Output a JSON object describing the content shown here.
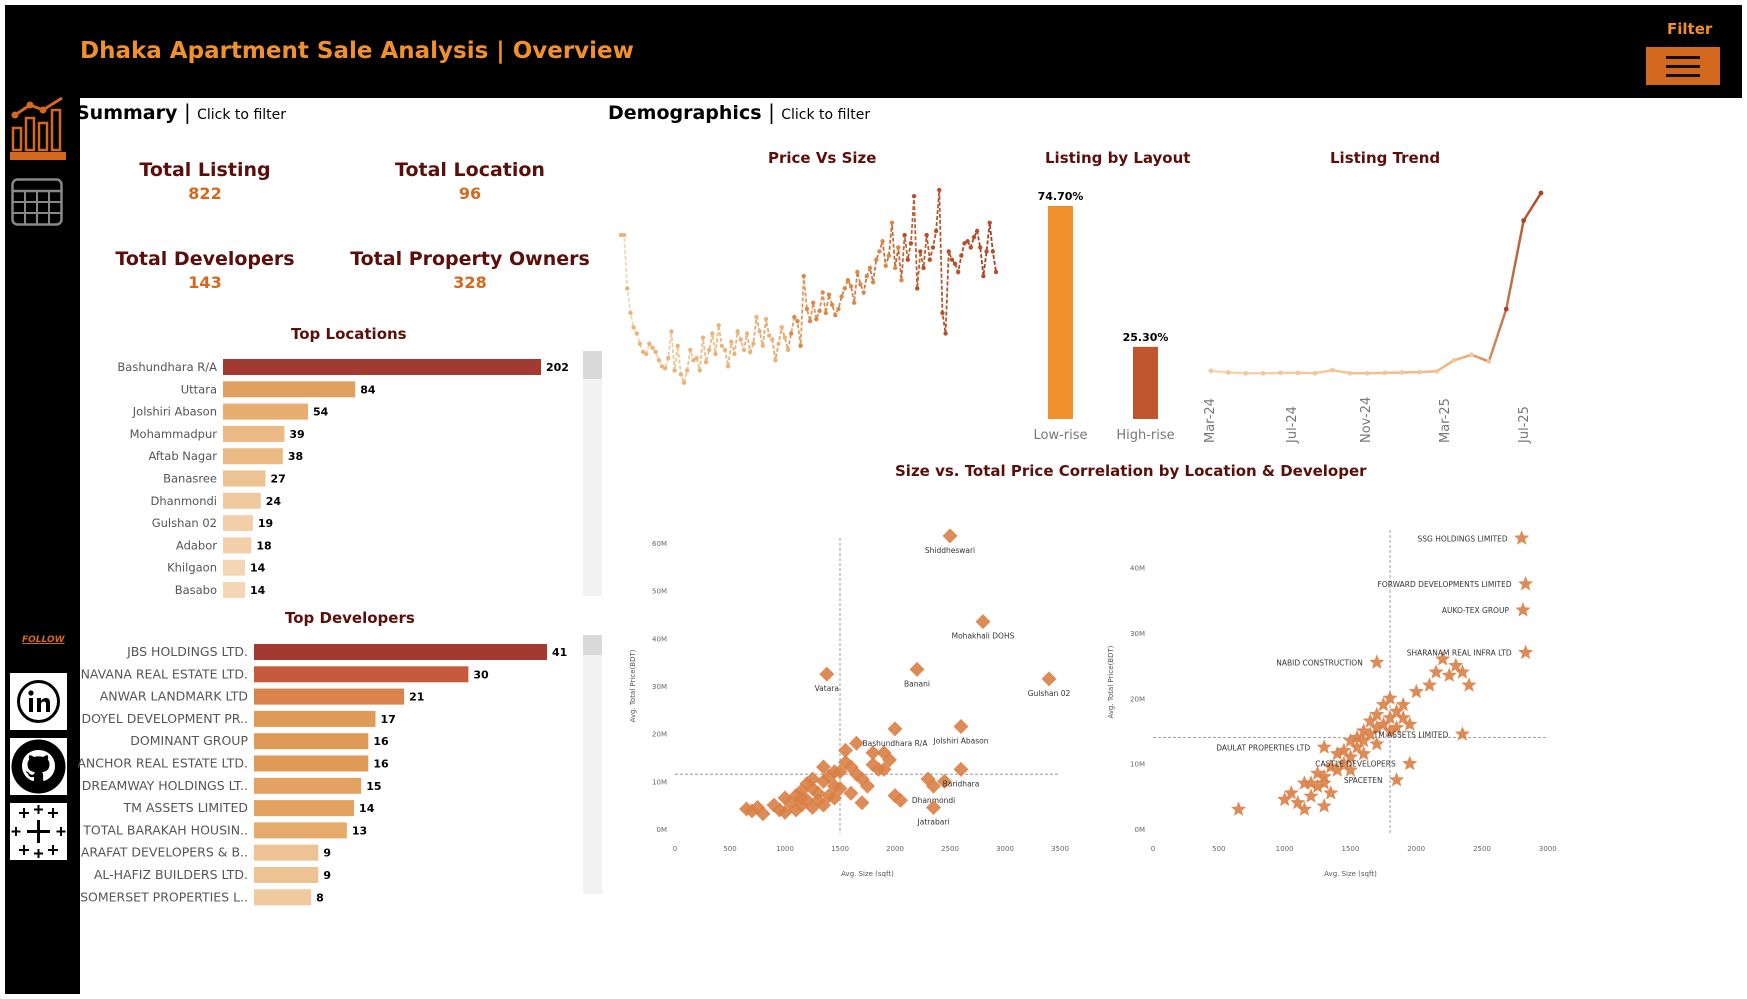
{
  "header": {
    "title": "Dhaka Apartment Sale Analysis | Overview",
    "filter_label": "Filter",
    "colors": {
      "background": "#000000",
      "accent": "#F0912C",
      "button": "#D2691E"
    }
  },
  "sidebar": {
    "icons": [
      "bar-line-chart-icon",
      "table-grid-icon",
      "linkedin-icon",
      "github-icon",
      "tableau-icon"
    ],
    "follow_label": "FOLLOW"
  },
  "summary": {
    "heading": "Summary",
    "click_hint": "Click to filter",
    "kpis": [
      {
        "label": "Total Listing",
        "value": "822"
      },
      {
        "label": "Total Location",
        "value": "96"
      },
      {
        "label": "Total Developers",
        "value": "143"
      },
      {
        "label": "Total Property Owners",
        "value": "328"
      }
    ]
  },
  "demographics": {
    "heading": "Demographics",
    "click_hint": "Click to filter"
  },
  "chart_data": [
    {
      "id": "top-locations",
      "type": "bar",
      "orientation": "horizontal",
      "title": "Top Locations",
      "categories": [
        "Bashundhara R/A",
        "Uttara",
        "Jolshiri Abason",
        "Mohammadpur",
        "Aftab Nagar",
        "Banasree",
        "Dhanmondi",
        "Gulshan 02",
        "Adabor",
        "Khilgaon",
        "Basabo"
      ],
      "values": [
        202,
        84,
        54,
        39,
        38,
        27,
        24,
        19,
        18,
        14,
        14
      ],
      "colors": [
        "#A33A32",
        "#DFA060",
        "#E7AE70",
        "#EBBA84",
        "#EBBA84",
        "#EEC394",
        "#F0C99E",
        "#F2CFA8",
        "#F2CFA8",
        "#F4D6B4",
        "#F4D6B4"
      ]
    },
    {
      "id": "top-developers",
      "type": "bar",
      "orientation": "horizontal",
      "title": "Top Developers",
      "categories": [
        "JBS HOLDINGS LTD.",
        "NAVANA REAL ESTATE LTD.",
        "ANWAR LANDMARK LTD",
        "DOYEL DEVELOPMENT PR..",
        "DOMINANT GROUP",
        "ANCHOR REAL ESTATE LTD.",
        "DREAMWAY HOLDINGS LT..",
        "TM ASSETS LIMITED",
        "TOTAL BARAKAH HOUSIN..",
        "ARAFAT DEVELOPERS & B..",
        "AL-HAFIZ BUILDERS LTD.",
        "SOMERSET PROPERTIES L.."
      ],
      "values": [
        41,
        30,
        21,
        17,
        16,
        16,
        15,
        14,
        13,
        9,
        9,
        8
      ],
      "colors": [
        "#A33A32",
        "#C65A3E",
        "#D9844D",
        "#E09A58",
        "#E09A58",
        "#E09A58",
        "#E3A262",
        "#E3A262",
        "#E6AA6C",
        "#EEC394",
        "#EEC394",
        "#F0C99E"
      ]
    },
    {
      "id": "price-vs-size",
      "type": "line",
      "title": "Price Vs Size",
      "x": [
        0,
        1,
        2,
        3,
        4,
        5,
        6,
        7,
        8,
        9,
        10,
        11,
        12,
        13,
        14,
        15,
        16,
        17,
        18,
        19,
        20,
        21,
        22,
        23,
        24,
        25,
        26,
        27,
        28,
        29,
        30,
        31,
        32,
        33,
        34,
        35,
        36,
        37,
        38,
        39,
        40,
        41,
        42,
        43,
        44,
        45,
        46,
        47,
        48,
        49,
        50,
        51,
        52,
        53,
        54,
        55,
        56,
        57,
        58,
        59,
        60,
        61,
        62,
        63,
        64,
        65,
        66,
        67,
        68,
        69,
        70,
        71,
        72,
        73,
        74,
        75,
        76,
        77,
        78,
        79,
        80,
        81,
        82,
        83,
        84,
        85,
        86,
        87,
        88,
        89,
        90,
        91,
        92,
        93,
        94,
        95,
        96,
        97,
        98,
        99,
        100,
        101,
        102,
        103,
        104,
        105,
        106,
        107,
        108,
        109,
        110,
        111,
        112,
        113,
        114,
        115,
        116,
        117,
        118,
        119
      ],
      "values": [
        0.78,
        0.78,
        0.52,
        0.4,
        0.33,
        0.3,
        0.25,
        0.21,
        0.2,
        0.25,
        0.23,
        0.21,
        0.17,
        0.14,
        0.13,
        0.18,
        0.31,
        0.12,
        0.24,
        0.1,
        0.06,
        0.12,
        0.22,
        0.17,
        0.18,
        0.12,
        0.28,
        0.16,
        0.22,
        0.3,
        0.2,
        0.34,
        0.24,
        0.22,
        0.14,
        0.26,
        0.2,
        0.31,
        0.27,
        0.22,
        0.3,
        0.21,
        0.25,
        0.38,
        0.31,
        0.24,
        0.37,
        0.29,
        0.27,
        0.17,
        0.25,
        0.33,
        0.28,
        0.22,
        0.3,
        0.38,
        0.36,
        0.24,
        0.58,
        0.42,
        0.36,
        0.45,
        0.37,
        0.41,
        0.5,
        0.4,
        0.49,
        0.44,
        0.39,
        0.42,
        0.48,
        0.52,
        0.56,
        0.53,
        0.45,
        0.6,
        0.54,
        0.5,
        0.58,
        0.62,
        0.55,
        0.66,
        0.7,
        0.75,
        0.63,
        0.68,
        0.84,
        0.62,
        0.72,
        0.56,
        0.78,
        0.66,
        0.74,
        0.97,
        0.52,
        0.7,
        0.62,
        0.78,
        0.66,
        0.72,
        0.8,
        1.0,
        0.4,
        0.3,
        0.7,
        0.66,
        0.64,
        0.6,
        0.68,
        0.74,
        0.75,
        0.72,
        0.77,
        0.8,
        0.72,
        0.58,
        0.7,
        0.84,
        0.7,
        0.6
      ],
      "note_style": "dashed gradient orange"
    },
    {
      "id": "listing-by-layout",
      "type": "bar",
      "title": "Listing by Layout",
      "categories": [
        "Low-rise",
        "High-rise"
      ],
      "values": [
        74.7,
        25.3
      ],
      "value_labels": [
        "74.70%",
        "25.30%"
      ],
      "colors": [
        "#F0912C",
        "#BF5630"
      ]
    },
    {
      "id": "listing-trend",
      "type": "line",
      "title": "Listing Trend",
      "x_tick_labels": [
        "Mar-24",
        "Jul-24",
        "Nov-24",
        "Mar-25",
        "Jul-25"
      ],
      "values": [
        18,
        14,
        12,
        12,
        13,
        13,
        12,
        20,
        12,
        12,
        13,
        14,
        15,
        17,
        45,
        59,
        42,
        175,
        400,
        470
      ]
    },
    {
      "id": "location-scatter",
      "type": "scatter",
      "title": "Size vs. Total Price Correlation by Location & Developer",
      "xlabel": "Avg. Size (sqft)",
      "ylabel": "Avg. Total Price(BDT)",
      "x_ticks": [
        "0",
        "500",
        "1000",
        "1500",
        "2000",
        "2500",
        "3000",
        "3500"
      ],
      "y_ticks": [
        "0M",
        "10M",
        "20M",
        "30M",
        "40M",
        "50M",
        "60M"
      ],
      "xlim": [
        0,
        3500
      ],
      "ylim": [
        0,
        60
      ],
      "ref_x": 1500,
      "ref_y": 11.5,
      "labeled_points": [
        {
          "label": "Shiddheswari",
          "x": 2500,
          "y": 61.5
        },
        {
          "label": "Mohakhali DOHS",
          "x": 2800,
          "y": 43.5
        },
        {
          "label": "Vatara",
          "x": 1380,
          "y": 32.5
        },
        {
          "label": "Banani",
          "x": 2200,
          "y": 33.5
        },
        {
          "label": "Gulshan 02",
          "x": 3400,
          "y": 31.5
        },
        {
          "label": "Bashundhara R/A",
          "x": 2000,
          "y": 21.0
        },
        {
          "label": "Jolshiri Abason",
          "x": 2600,
          "y": 21.5
        },
        {
          "label": "Baridhara",
          "x": 2600,
          "y": 12.5
        },
        {
          "label": "Dhanmondi",
          "x": 2350,
          "y": 9.0
        },
        {
          "label": "Jatrabari",
          "x": 2350,
          "y": 4.5
        }
      ],
      "points": [
        [
          650,
          4.2
        ],
        [
          700,
          3.8
        ],
        [
          750,
          4.5
        ],
        [
          800,
          3.2
        ],
        [
          900,
          5.0
        ],
        [
          950,
          4.0
        ],
        [
          1000,
          6.5
        ],
        [
          1050,
          5.5
        ],
        [
          1100,
          7.0
        ],
        [
          1150,
          8.0
        ],
        [
          1200,
          9.5
        ],
        [
          1250,
          8.5
        ],
        [
          1300,
          7.5
        ],
        [
          1350,
          10.0
        ],
        [
          1400,
          11.0
        ],
        [
          1450,
          9.0
        ],
        [
          1500,
          12.0
        ],
        [
          1550,
          14.0
        ],
        [
          1600,
          13.0
        ],
        [
          1650,
          11.5
        ],
        [
          1700,
          10.5
        ],
        [
          1750,
          9.0
        ],
        [
          1800,
          13.5
        ],
        [
          1850,
          12.5
        ],
        [
          1900,
          16.0
        ],
        [
          1950,
          14.5
        ],
        [
          2000,
          7.0
        ],
        [
          1100,
          4.0
        ],
        [
          1150,
          5.0
        ],
        [
          1200,
          6.0
        ],
        [
          1250,
          4.5
        ],
        [
          1300,
          6.0
        ],
        [
          1350,
          5.0
        ],
        [
          1400,
          7.0
        ],
        [
          1450,
          6.5
        ],
        [
          1500,
          8.5
        ],
        [
          1600,
          7.5
        ],
        [
          1700,
          5.5
        ],
        [
          2300,
          10.5
        ],
        [
          2450,
          10.0
        ],
        [
          1550,
          16.5
        ],
        [
          1650,
          18.0
        ],
        [
          1800,
          16.0
        ],
        [
          1900,
          12.5
        ],
        [
          1000,
          3.5
        ],
        [
          1150,
          6.5
        ],
        [
          1250,
          10.5
        ],
        [
          1350,
          13.0
        ],
        [
          1450,
          12.0
        ],
        [
          2050,
          6.0
        ]
      ]
    },
    {
      "id": "developer-scatter",
      "type": "scatter",
      "xlabel": "Avg. Size (sqft)",
      "ylabel": "Avg. Total Price(BDT)",
      "x_ticks": [
        "0",
        "500",
        "1000",
        "1500",
        "2000",
        "2500",
        "3000"
      ],
      "y_ticks": [
        "0M",
        "10M",
        "20M",
        "30M",
        "40M"
      ],
      "xlim": [
        0,
        3000
      ],
      "ylim": [
        0,
        45
      ],
      "ref_x": 1800,
      "ref_y": 14.0,
      "labeled_points": [
        {
          "label": "SSG HOLDINGS LIMITED",
          "x": 2800,
          "y": 44.5
        },
        {
          "label": "FORWARD DEVELOPMENTS LIMITED",
          "x": 2830,
          "y": 37.5
        },
        {
          "label": "AUKO-TEX GROUP",
          "x": 2810,
          "y": 33.5
        },
        {
          "label": "SHARANAM REAL INFRA LTD",
          "x": 2830,
          "y": 27.0
        },
        {
          "label": "NABID CONSTRUCTION",
          "x": 1700,
          "y": 25.5
        },
        {
          "label": "DAULAT PROPERTIES LTD",
          "x": 1300,
          "y": 12.5
        },
        {
          "label": "TM ASSETS LIMITED",
          "x": 2350,
          "y": 14.5
        },
        {
          "label": "CASTLE DEVELOPERS",
          "x": 1950,
          "y": 10.0
        },
        {
          "label": "SPACETEN",
          "x": 1850,
          "y": 7.5
        }
      ],
      "points": [
        [
          650,
          3.0
        ],
        [
          1000,
          4.5
        ],
        [
          1050,
          5.5
        ],
        [
          1100,
          4.0
        ],
        [
          1150,
          7.0
        ],
        [
          1200,
          5.0
        ],
        [
          1250,
          6.5
        ],
        [
          1300,
          8.0
        ],
        [
          1350,
          5.5
        ],
        [
          1400,
          9.0
        ],
        [
          1450,
          10.0
        ],
        [
          1500,
          11.0
        ],
        [
          1550,
          12.5
        ],
        [
          1600,
          13.5
        ],
        [
          1650,
          14.5
        ],
        [
          1700,
          15.5
        ],
        [
          1750,
          16.0
        ],
        [
          1800,
          17.0
        ],
        [
          1850,
          18.0
        ],
        [
          1900,
          19.0
        ],
        [
          2000,
          21.0
        ],
        [
          2100,
          22.0
        ],
        [
          2150,
          24.0
        ],
        [
          2200,
          26.0
        ],
        [
          2250,
          23.5
        ],
        [
          2300,
          25.0
        ],
        [
          2350,
          24.0
        ],
        [
          2400,
          22.0
        ],
        [
          1200,
          7.0
        ],
        [
          1250,
          8.5
        ],
        [
          1300,
          7.0
        ],
        [
          1350,
          9.5
        ],
        [
          1400,
          11.5
        ],
        [
          1450,
          12.0
        ],
        [
          1500,
          13.5
        ],
        [
          1550,
          14.0
        ],
        [
          1600,
          15.0
        ],
        [
          1650,
          16.5
        ],
        [
          1700,
          13.0
        ],
        [
          1750,
          19.0
        ],
        [
          1800,
          20.0
        ],
        [
          1850,
          15.5
        ],
        [
          1900,
          17.0
        ],
        [
          1950,
          16.0
        ],
        [
          1300,
          3.5
        ],
        [
          1150,
          3.0
        ],
        [
          1500,
          9.0
        ],
        [
          1600,
          11.5
        ],
        [
          1700,
          17.5
        ],
        [
          1800,
          15.0
        ]
      ]
    }
  ]
}
